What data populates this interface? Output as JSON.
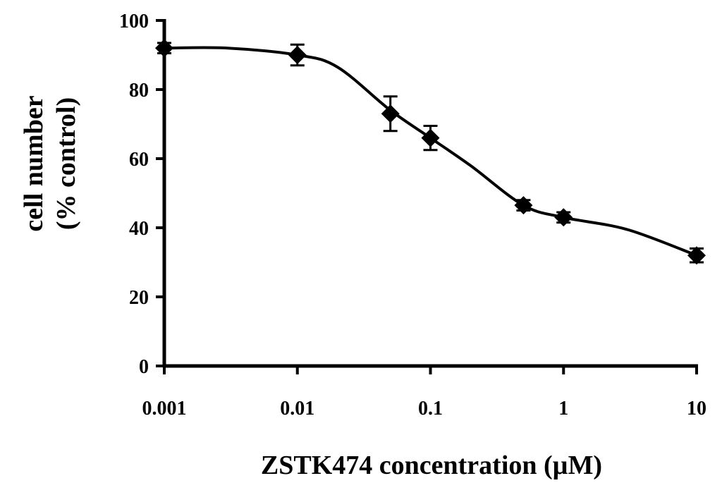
{
  "chart_data": {
    "type": "line",
    "title": "",
    "xlabel": "ZSTK474 concentration (µM)",
    "ylabel_line1": "cell number",
    "ylabel_line2": "(% control)",
    "x_scale": "log",
    "xlim": [
      0.001,
      10
    ],
    "ylim": [
      0,
      100
    ],
    "x_ticks": [
      0.001,
      0.01,
      0.1,
      1,
      10
    ],
    "x_tick_labels": [
      "0.001",
      "0.01",
      "0.1",
      "1",
      "10"
    ],
    "y_ticks": [
      0,
      20,
      40,
      60,
      80,
      100
    ],
    "y_tick_labels": [
      "0",
      "20",
      "40",
      "60",
      "80",
      "100"
    ],
    "grid": false,
    "legend": "none",
    "series": [
      {
        "name": "cell number",
        "marker": "diamond",
        "x": [
          0.001,
          0.01,
          0.05,
          0.1,
          0.5,
          1,
          10
        ],
        "y": [
          92,
          90,
          73,
          66,
          46.5,
          43,
          32
        ],
        "error": [
          1.5,
          3,
          5,
          3.5,
          1.5,
          1.5,
          2
        ]
      }
    ],
    "fit_curve": {
      "x": [
        0.001,
        0.003,
        0.01,
        0.02,
        0.05,
        0.1,
        0.2,
        0.5,
        1,
        3,
        10
      ],
      "y": [
        92,
        92,
        90,
        86.5,
        74,
        66,
        58,
        46.5,
        43,
        39.5,
        32
      ]
    }
  }
}
